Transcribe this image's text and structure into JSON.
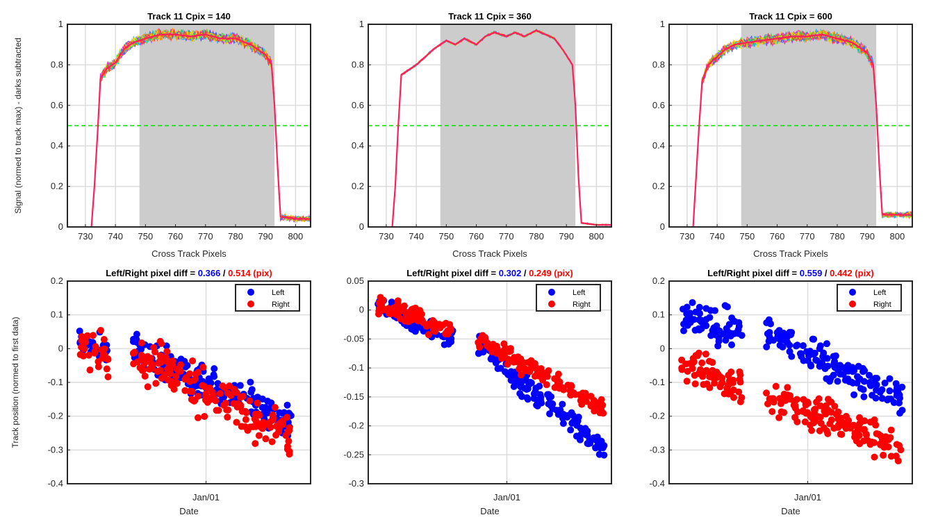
{
  "figure": {
    "colors": {
      "left": "#0000ff",
      "right": "#ff0000",
      "threshold": "#00e000",
      "shade": "#cccccc",
      "grid": "#dcdcdc"
    },
    "top_xticks": [
      730,
      740,
      750,
      760,
      770,
      780,
      790,
      800
    ],
    "top_yticks": [
      0,
      0.2,
      0.4,
      0.6,
      0.8,
      1
    ],
    "top_ytick_labels": [
      "0",
      "0.2",
      "0.4",
      "0.6",
      "0.8",
      "1"
    ],
    "top_xlim": [
      724,
      805
    ],
    "top_ylim": [
      0,
      1
    ],
    "top_shade_range": [
      748,
      793
    ],
    "threshold": 0.5,
    "top_ylabel": "Signal (normed to track max) - darks subtracted",
    "top_xlabel": "Cross Track Pixels",
    "bottom_ylabel": "Track position (normed to first data)",
    "bottom_xlabel": "Date",
    "date_tick": "Jan/01",
    "legend_left": "Left",
    "legend_right": "Right"
  },
  "chart_data": [
    {
      "type": "line",
      "title": "Track 11 Cpix = 140",
      "xlabel": "Cross Track Pixels",
      "ylabel": "Signal (normed to track max) - darks subtracted",
      "xlim": [
        724,
        805
      ],
      "ylim": [
        0,
        1
      ],
      "shaded_region": [
        748,
        793
      ],
      "threshold_line": 0.5,
      "profile": [
        [
          732,
          0.0
        ],
        [
          733,
          0.2
        ],
        [
          734,
          0.45
        ],
        [
          735,
          0.73
        ],
        [
          737,
          0.78
        ],
        [
          740,
          0.81
        ],
        [
          743,
          0.88
        ],
        [
          746,
          0.91
        ],
        [
          750,
          0.93
        ],
        [
          755,
          0.95
        ],
        [
          760,
          0.95
        ],
        [
          765,
          0.94
        ],
        [
          770,
          0.95
        ],
        [
          775,
          0.93
        ],
        [
          780,
          0.93
        ],
        [
          785,
          0.9
        ],
        [
          790,
          0.85
        ],
        [
          792,
          0.8
        ],
        [
          793,
          0.6
        ],
        [
          794,
          0.3
        ],
        [
          795,
          0.05
        ],
        [
          800,
          0.04
        ],
        [
          805,
          0.04
        ]
      ],
      "noise": 0.035,
      "tail_noise": 0.02
    },
    {
      "type": "line",
      "title": "Track 11 Cpix = 360",
      "xlabel": "Cross Track Pixels",
      "ylabel": "",
      "xlim": [
        724,
        805
      ],
      "ylim": [
        0,
        1
      ],
      "shaded_region": [
        748,
        793
      ],
      "threshold_line": 0.5,
      "profile": [
        [
          732,
          0.0
        ],
        [
          733,
          0.2
        ],
        [
          734,
          0.5
        ],
        [
          735,
          0.75
        ],
        [
          737,
          0.77
        ],
        [
          740,
          0.8
        ],
        [
          743,
          0.84
        ],
        [
          746,
          0.88
        ],
        [
          750,
          0.92
        ],
        [
          753,
          0.9
        ],
        [
          756,
          0.93
        ],
        [
          760,
          0.9
        ],
        [
          763,
          0.94
        ],
        [
          766,
          0.96
        ],
        [
          770,
          0.94
        ],
        [
          773,
          0.96
        ],
        [
          776,
          0.94
        ],
        [
          780,
          0.97
        ],
        [
          783,
          0.95
        ],
        [
          786,
          0.93
        ],
        [
          789,
          0.87
        ],
        [
          792,
          0.8
        ],
        [
          793,
          0.6
        ],
        [
          794,
          0.25
        ],
        [
          795,
          0.02
        ],
        [
          800,
          0.01
        ],
        [
          805,
          0.01
        ]
      ],
      "noise": 0.008,
      "tail_noise": 0.005
    },
    {
      "type": "line",
      "title": "Track 11 Cpix = 600",
      "xlabel": "Cross Track Pixels",
      "ylabel": "",
      "xlim": [
        724,
        805
      ],
      "ylim": [
        0,
        1
      ],
      "shaded_region": [
        748,
        793
      ],
      "threshold_line": 0.5,
      "profile": [
        [
          732,
          0.0
        ],
        [
          733,
          0.25
        ],
        [
          734,
          0.5
        ],
        [
          735,
          0.72
        ],
        [
          737,
          0.8
        ],
        [
          740,
          0.84
        ],
        [
          743,
          0.88
        ],
        [
          746,
          0.9
        ],
        [
          750,
          0.91
        ],
        [
          755,
          0.92
        ],
        [
          760,
          0.93
        ],
        [
          765,
          0.94
        ],
        [
          770,
          0.94
        ],
        [
          775,
          0.95
        ],
        [
          780,
          0.93
        ],
        [
          785,
          0.91
        ],
        [
          790,
          0.86
        ],
        [
          792,
          0.8
        ],
        [
          793,
          0.6
        ],
        [
          794,
          0.3
        ],
        [
          795,
          0.06
        ],
        [
          800,
          0.06
        ],
        [
          805,
          0.06
        ]
      ],
      "noise": 0.035,
      "tail_noise": 0.02
    },
    {
      "type": "scatter",
      "title_prefix": "Left/Right pixel diff = ",
      "left_diff": "0.366",
      "separator": " / ",
      "right_diff": "0.514 (pix)",
      "xlabel": "Date",
      "ylabel": "Track position (normed to first data)",
      "xlim": [
        0,
        1
      ],
      "ylim": [
        -0.4,
        0.2
      ],
      "yticks": [
        -0.4,
        -0.3,
        -0.2,
        -0.1,
        0,
        0.1,
        0.2
      ],
      "ytick_labels": [
        "-0.4",
        "-0.3",
        "-0.2",
        "-0.1",
        "0",
        "0.1",
        "0.2"
      ],
      "date_tick_x": 0.57,
      "groups": [
        {
          "x": [
            0.05,
            0.17
          ],
          "left_y": [
            0.02,
            0.0
          ],
          "right_y": [
            0.03,
            -0.03
          ],
          "lspread": 0.04,
          "rspread": 0.055
        },
        {
          "x": [
            0.27,
            0.92
          ],
          "left_y": [
            0.0,
            -0.22
          ],
          "right_y": [
            -0.02,
            -0.26
          ],
          "lspread": 0.045,
          "rspread": 0.06
        }
      ]
    },
    {
      "type": "scatter",
      "title_prefix": "Left/Right pixel diff = ",
      "left_diff": "0.302",
      "separator": " / ",
      "right_diff": "0.249 (pix)",
      "xlabel": "Date",
      "ylabel": "",
      "xlim": [
        0,
        1
      ],
      "ylim": [
        -0.3,
        0.05
      ],
      "yticks": [
        -0.3,
        -0.25,
        -0.2,
        -0.15,
        -0.1,
        -0.05,
        0,
        0.05
      ],
      "ytick_labels": [
        "-0.3",
        "-0.25",
        "-0.2",
        "-0.15",
        "-0.1",
        "-0.05",
        "0",
        "0.05"
      ],
      "date_tick_x": 0.57,
      "groups": [
        {
          "x": [
            0.04,
            0.35
          ],
          "left_y": [
            0.01,
            -0.05
          ],
          "right_y": [
            0.01,
            -0.04
          ],
          "lspread": 0.015,
          "rspread": 0.015
        },
        {
          "x": [
            0.45,
            0.97
          ],
          "left_y": [
            -0.06,
            -0.24
          ],
          "right_y": [
            -0.05,
            -0.17
          ],
          "lspread": 0.02,
          "rspread": 0.014
        }
      ]
    },
    {
      "type": "scatter",
      "title_prefix": "Left/Right pixel diff = ",
      "left_diff": "0.559",
      "separator": " / ",
      "right_diff": "0.442 (pix)",
      "xlabel": "Date",
      "ylabel": "",
      "xlim": [
        0,
        1
      ],
      "ylim": [
        -0.4,
        0.2
      ],
      "yticks": [
        -0.4,
        -0.3,
        -0.2,
        -0.1,
        0,
        0.1,
        0.2
      ],
      "ytick_labels": [
        "-0.4",
        "-0.3",
        "-0.2",
        "-0.1",
        "0",
        "0.1",
        "0.2"
      ],
      "date_tick_x": 0.57,
      "groups": [
        {
          "x": [
            0.05,
            0.3
          ],
          "left_y": [
            0.1,
            0.05
          ],
          "right_y": [
            -0.04,
            -0.12
          ],
          "lspread": 0.05,
          "rspread": 0.04
        },
        {
          "x": [
            0.4,
            0.96
          ],
          "left_y": [
            0.05,
            -0.15
          ],
          "right_y": [
            -0.14,
            -0.29
          ],
          "lspread": 0.045,
          "rspread": 0.05
        }
      ]
    }
  ]
}
